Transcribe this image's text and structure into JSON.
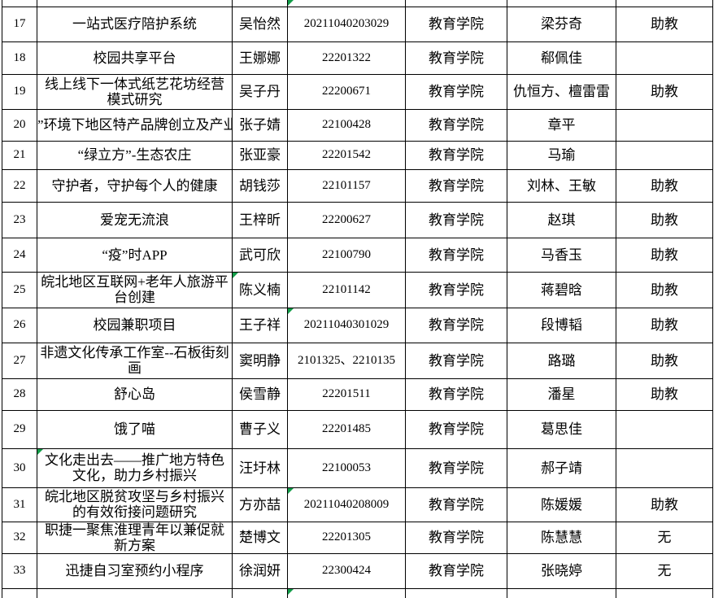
{
  "colors": {
    "marker_green": "#129d48",
    "grid_line": "#000000",
    "background": "#ffffff",
    "text": "#000000"
  },
  "table": {
    "rows": [
      {
        "sliver": "top",
        "no": "",
        "title": "",
        "name": "",
        "id": "",
        "college": "",
        "advisor": "",
        "position": "",
        "markers": [
          "id"
        ]
      },
      {
        "no": "17",
        "title": "一站式医疗陪护系统",
        "name": "吴怡然",
        "id": "20211040203029",
        "college": "教育学院",
        "advisor": "梁芬奇",
        "position": "助教"
      },
      {
        "no": "18",
        "title": "校园共享平台",
        "name": "王娜娜",
        "id": "22201322",
        "college": "教育学院",
        "advisor": "郗佩佳",
        "position": ""
      },
      {
        "no": "19",
        "title": "线上线下一体式纸艺花坊经营模式研究",
        "name": "吴子丹",
        "id": "22200671",
        "college": "教育学院",
        "advisor": "仇恒方、檀雷雷",
        "position": "助教"
      },
      {
        "no": "20",
        "title": "”环境下地区特产品牌创立及产业",
        "title_clipped": true,
        "name": "张子婧",
        "id": "22100428",
        "college": "教育学院",
        "advisor": "章平",
        "position": ""
      },
      {
        "no": "21",
        "title": "“绿立方”-生态农庄",
        "name": "张亚豪",
        "id": "22201542",
        "college": "教育学院",
        "advisor": "马瑜",
        "position": ""
      },
      {
        "no": "22",
        "title": "守护者，守护每个人的健康",
        "name": "胡钱莎",
        "id": "22101157",
        "college": "教育学院",
        "advisor": "刘林、王敏",
        "position": "助教"
      },
      {
        "no": "23",
        "title": "爱宠无流浪",
        "name": "王梓昕",
        "id": "22200627",
        "college": "教育学院",
        "advisor": "赵琪",
        "position": "助教"
      },
      {
        "no": "24",
        "title": "“疫”时APP",
        "name": "武可欣",
        "id": "22100790",
        "college": "教育学院",
        "advisor": "马香玉",
        "position": "助教"
      },
      {
        "no": "25",
        "title": "皖北地区互联网+老年人旅游平台创建",
        "name": "陈义楠",
        "id": "22101142",
        "college": "教育学院",
        "advisor": "蒋碧晗",
        "position": "助教",
        "markers": [
          "name"
        ]
      },
      {
        "no": "26",
        "title": "校园兼职项目",
        "name": "王子祥",
        "id": "20211040301029",
        "college": "教育学院",
        "advisor": "段博韬",
        "position": "助教",
        "markers": [
          "id"
        ]
      },
      {
        "no": "27",
        "title": "非遗文化传承工作室--石板街刻画",
        "name": "窦明静",
        "id": "2101325、2210135",
        "college": "教育学院",
        "advisor": "路璐",
        "position": "助教"
      },
      {
        "no": "28",
        "title": "舒心岛",
        "name": "侯雪静",
        "id": "22201511",
        "college": "教育学院",
        "advisor": "潘星",
        "position": "助教"
      },
      {
        "no": "29",
        "title": "饿了喵",
        "name": "曹子义",
        "id": "22201485",
        "college": "教育学院",
        "advisor": "葛思佳",
        "position": ""
      },
      {
        "no": "30",
        "title": "文化走出去——推广地方特色文化，助力乡村振兴",
        "name": "汪圩林",
        "id": "22100053",
        "college": "教育学院",
        "advisor": "郝子靖",
        "position": "",
        "markers": [
          "title"
        ]
      },
      {
        "no": "31",
        "title": "皖北地区脱贫攻坚与乡村振兴的有效衔接问题研究",
        "name": "方亦喆",
        "id": "20211040208009",
        "college": "教育学院",
        "advisor": "陈媛媛",
        "position": "助教",
        "markers": [
          "id"
        ]
      },
      {
        "no": "32",
        "title": "职捷一聚焦淮理青年以兼促就新方案",
        "name": "楚博文",
        "id": "22201305",
        "college": "教育学院",
        "advisor": "陈慧慧",
        "position": "无",
        "left_strip": true
      },
      {
        "no": "33",
        "title": "迅捷自习室预约小程序",
        "name": "徐润妍",
        "id": "22300424",
        "college": "教育学院",
        "advisor": "张晓婷",
        "position": "无"
      },
      {
        "sliver": "bottom",
        "no": "",
        "title": "",
        "name": "",
        "id": "",
        "college": "",
        "advisor": "",
        "position": "",
        "markers": [
          "id"
        ],
        "left_strip": true
      }
    ]
  }
}
